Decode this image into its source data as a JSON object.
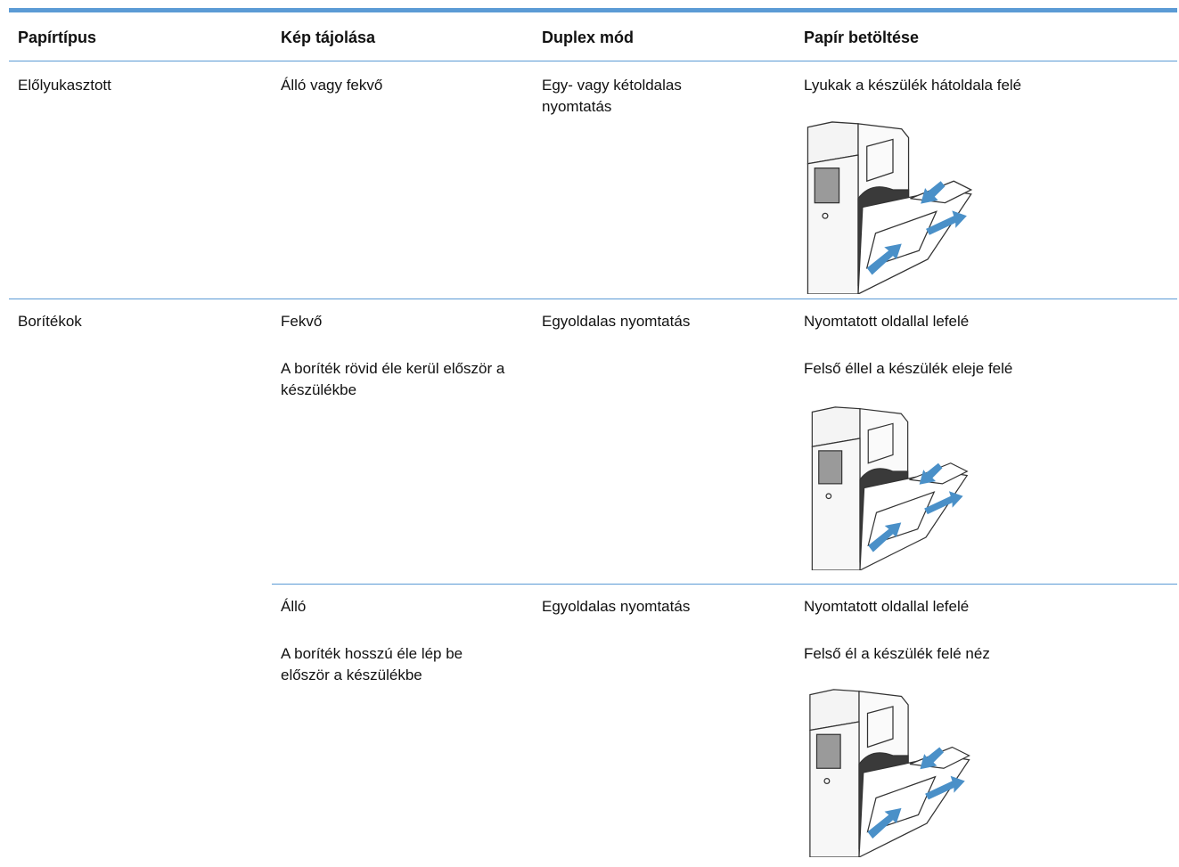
{
  "table": {
    "header": [
      "Papírtípus",
      "Kép tájolása",
      "Duplex mód",
      "Papír betöltése"
    ],
    "rows": [
      {
        "paper_type": "Előlyukasztott",
        "orientation": [
          "Álló vagy fekvő"
        ],
        "duplex": "Egy- vagy kétoldalas nyomtatás",
        "loading": [
          "Lyukak a készülék hátoldala felé"
        ]
      },
      {
        "paper_type": "Borítékok",
        "orientation": [
          "Fekvő",
          "A boríték rövid éle kerül először a készülékbe"
        ],
        "duplex": "Egyoldalas nyomtatás",
        "loading": [
          "Nyomtatott oldallal lefelé",
          "Felső éllel a készülék eleje felé"
        ]
      },
      {
        "orientation": [
          "Álló",
          "A boríték hosszú éle lép be először a készülékbe"
        ],
        "duplex": "Egyoldalas nyomtatás",
        "loading": [
          "Nyomtatott oldallal lefelé",
          "Felső él a készülék felé néz"
        ]
      }
    ]
  }
}
